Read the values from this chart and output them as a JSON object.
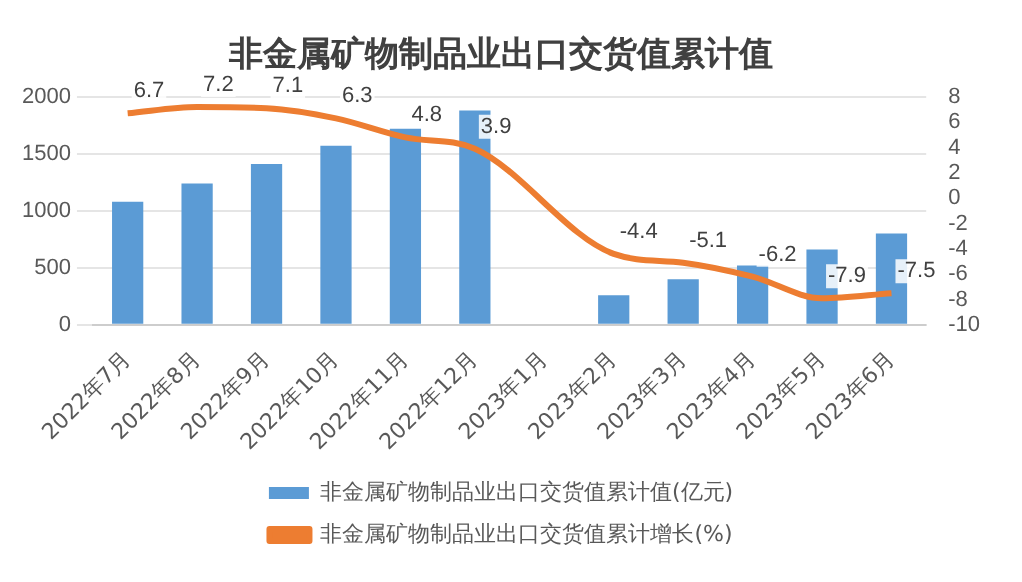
{
  "chart_data": {
    "type": "bar",
    "title": "非金属矿物制品业出口交货值累计值",
    "categories": [
      "2022年7月",
      "2022年8月",
      "2022年9月",
      "2022年10月",
      "2022年11月",
      "2022年12月",
      "2023年1月",
      "2023年2月",
      "2023年3月",
      "2023年4月",
      "2023年5月",
      "2023年6月"
    ],
    "series": [
      {
        "name": "非金属矿物制品业出口交货值累计值(亿元)",
        "color": "#5b9bd5",
        "values": [
          1080,
          1240,
          1410,
          1570,
          1720,
          1880,
          null,
          260,
          400,
          520,
          660,
          800
        ]
      },
      {
        "name": "非金属矿物制品业出口交货值累计增长(%)",
        "type": "line",
        "axis": "y2",
        "color": "#ed7d31",
        "values": [
          6.7,
          7.2,
          7.1,
          6.3,
          4.8,
          3.9,
          null,
          -4.4,
          -5.1,
          -6.2,
          -7.9,
          -7.5
        ],
        "value_labels": [
          "6.7",
          "7.2",
          "7.1",
          "6.3",
          "4.8",
          "3.9",
          null,
          "-4.4",
          "-5.1",
          "-6.2",
          "-7.9",
          "-7.5"
        ]
      }
    ],
    "ylim": [
      0,
      2000
    ],
    "yticks": [
      0,
      500,
      1000,
      1500,
      2000
    ],
    "y2lim": [
      -10,
      8
    ],
    "y2ticks": [
      -10,
      -8,
      -6,
      -4,
      -2,
      0,
      2,
      4,
      6,
      8
    ],
    "grid": "y",
    "legend": "bottom",
    "marker": "none"
  }
}
